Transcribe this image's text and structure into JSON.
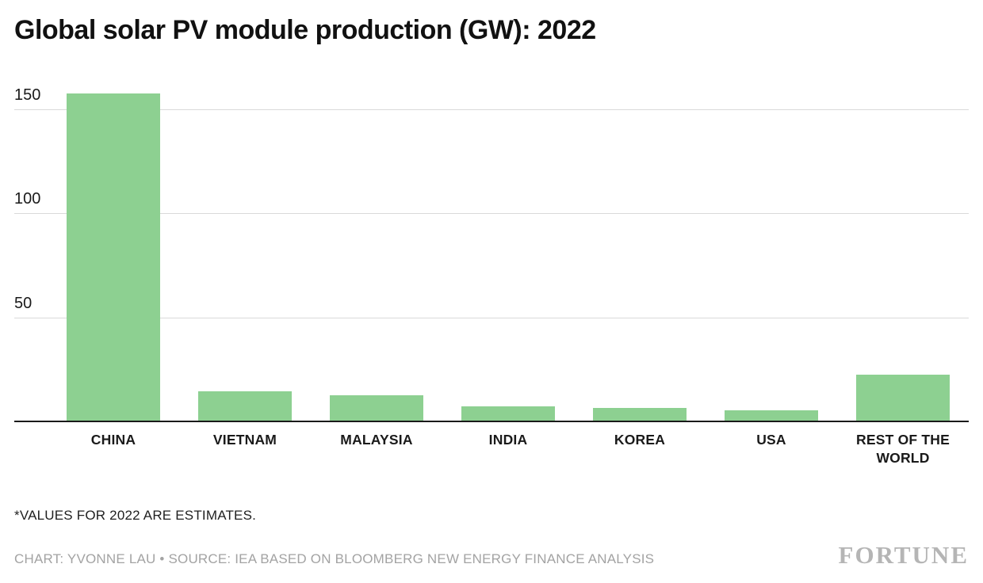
{
  "title": "Global solar PV module production (GW): 2022",
  "chart_data": {
    "type": "bar",
    "categories": [
      "CHINA",
      "VIETNAM",
      "MALAYSIA",
      "INDIA",
      "KOREA",
      "USA",
      "REST OF THE WORLD"
    ],
    "values": [
      158,
      14,
      12,
      7,
      6,
      5,
      22
    ],
    "title": "Global solar PV module production (GW): 2022",
    "xlabel": "",
    "ylabel": "",
    "ylim": [
      0,
      160
    ],
    "yticks": [
      50,
      100,
      150
    ],
    "grid": true,
    "legend": false,
    "bar_color": "#8dd091",
    "gridline_color": "#d9d9d9",
    "axis_color": "#1a1a1a"
  },
  "footer": {
    "note": "*VALUES FOR 2022 ARE ESTIMATES.",
    "credit": "CHART: YVONNE LAU • SOURCE: IEA BASED ON BLOOMBERG NEW ENERGY FINANCE ANALYSIS",
    "logo": "FORTUNE"
  }
}
